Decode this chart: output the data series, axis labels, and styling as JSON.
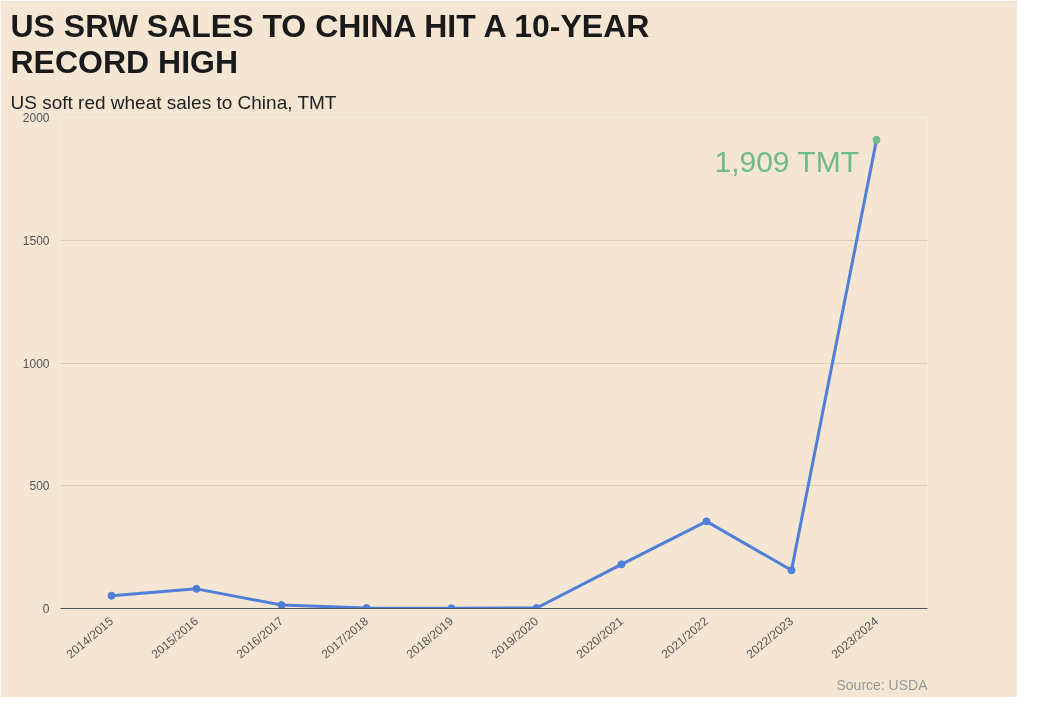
{
  "chart_data": {
    "type": "line",
    "title": "US SRW SALES TO CHINA HIT A 10-YEAR RECORD HIGH",
    "subtitle": "US soft red wheat sales to China, TMT",
    "categories": [
      "2014/2015",
      "2015/2016",
      "2016/2017",
      "2017/2018",
      "2018/2019",
      "2019/2020",
      "2020/2021",
      "2021/2022",
      "2022/2023",
      "2023/2024"
    ],
    "series": [
      {
        "color": "#4f7fd9",
        "values": [
          52,
          80,
          14,
          2,
          1,
          2,
          180,
          355,
          156,
          1909
        ],
        "colors": [
          "#4f7fd9",
          "#4f7fd9",
          "#4f7fd9",
          "#4f7fd9",
          "#4f7fd9",
          "#4f7fd9",
          "#4f7fd9",
          "#4f7fd9",
          "#4f7fd9",
          "#6dbb8a"
        ]
      }
    ],
    "ylim": [
      0,
      2000
    ],
    "yticks": [
      0,
      500,
      1000,
      1500,
      2000
    ],
    "grid": "y",
    "marker": "circle",
    "line_style": "solid",
    "annotations": [
      {
        "text": "1,909 TMT",
        "x": "2023/2024",
        "y": 1909
      },
      "Source: USDA"
    ]
  }
}
